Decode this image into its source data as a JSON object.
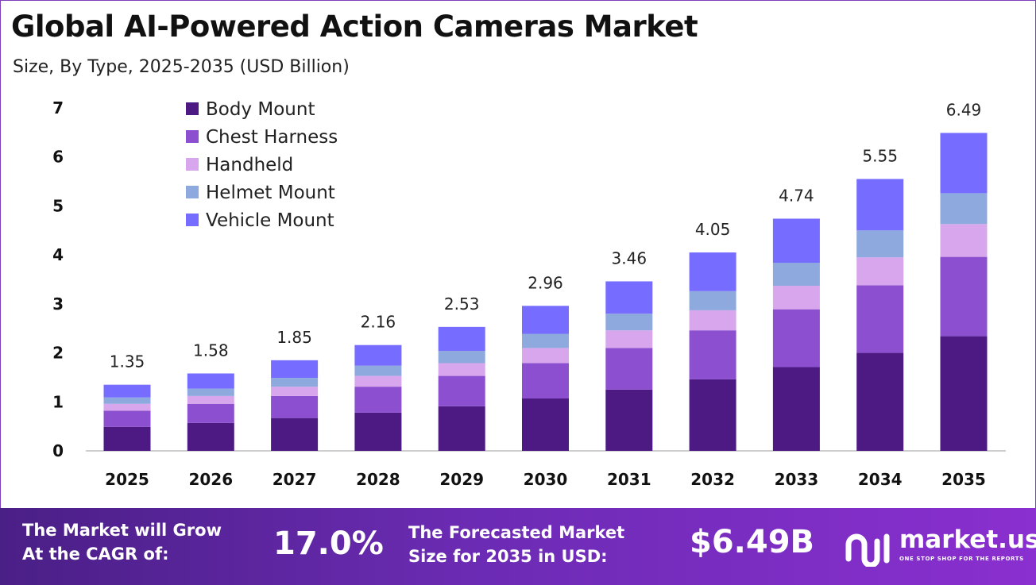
{
  "title": "Global AI-Powered Action Cameras Market",
  "subtitle": "Size, By Type, 2025-2035 (USD Billion)",
  "chart_data": {
    "type": "bar",
    "stacked": true,
    "categories": [
      "2025",
      "2026",
      "2027",
      "2028",
      "2029",
      "2030",
      "2031",
      "2032",
      "2033",
      "2034",
      "2035"
    ],
    "series": [
      {
        "name": "Body Mount",
        "color": "#4d1a84",
        "values": [
          0.49,
          0.57,
          0.67,
          0.78,
          0.91,
          1.07,
          1.25,
          1.46,
          1.71,
          2.0,
          2.34
        ]
      },
      {
        "name": "Chest Harness",
        "color": "#8b4fd0",
        "values": [
          0.33,
          0.39,
          0.45,
          0.53,
          0.62,
          0.72,
          0.85,
          1.0,
          1.18,
          1.38,
          1.62
        ]
      },
      {
        "name": "Handheld",
        "color": "#d7a6ec",
        "values": [
          0.14,
          0.16,
          0.19,
          0.22,
          0.26,
          0.31,
          0.36,
          0.41,
          0.48,
          0.57,
          0.67
        ]
      },
      {
        "name": "Helmet Mount",
        "color": "#8ea9de",
        "values": [
          0.13,
          0.15,
          0.18,
          0.21,
          0.25,
          0.29,
          0.34,
          0.39,
          0.47,
          0.55,
          0.63
        ]
      },
      {
        "name": "Vehicle Mount",
        "color": "#766cff",
        "values": [
          0.26,
          0.31,
          0.36,
          0.42,
          0.49,
          0.57,
          0.66,
          0.79,
          0.9,
          1.05,
          1.23
        ]
      }
    ],
    "totals": [
      "1.35",
      "1.58",
      "1.85",
      "2.16",
      "2.53",
      "2.96",
      "3.46",
      "4.05",
      "4.74",
      "5.55",
      "6.49"
    ],
    "y_ticks": [
      "0",
      "1",
      "2",
      "3",
      "4",
      "5",
      "6",
      "7"
    ],
    "ylim": [
      0,
      7
    ],
    "legend_position": "top-left",
    "grid": false
  },
  "footer": {
    "cagr_label": "The Market will Grow\nAt the CAGR of:",
    "cagr_value": "17.0%",
    "forecast_label": "The Forecasted Market\nSize for 2035 in USD:",
    "forecast_value": "$6.49B",
    "brand_name": "market.us",
    "brand_tagline": "ONE STOP SHOP FOR THE REPORTS",
    "logo_icon": "market-us-logo-icon"
  }
}
